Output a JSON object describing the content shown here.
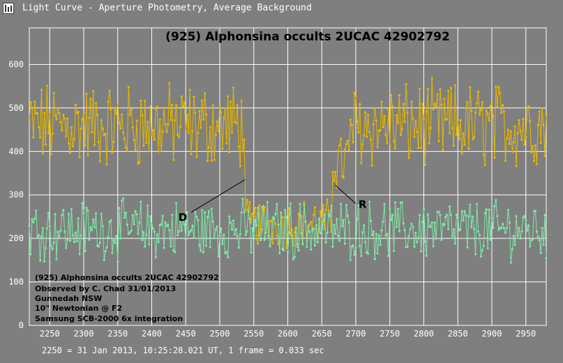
{
  "window": {
    "title": "Light Curve - Aperture Photometry, Average Background",
    "icon": "light-curve-app-icon"
  },
  "colors": {
    "background": "#7f7f7f",
    "grid": "#ffffff",
    "target_series": "#e6b800",
    "comparison_series": "#7fe8a6",
    "text": "#000000"
  },
  "chart_data": {
    "type": "line",
    "title": "(925) Alphonsina occults 2UCAC 42902792",
    "xlim": [
      2220,
      2980
    ],
    "ylim": [
      0,
      620
    ],
    "x_ticks": [
      "2250",
      "2300",
      "2350",
      "2400",
      "2450",
      "2500",
      "2550",
      "2600",
      "2650",
      "2700",
      "2750",
      "2800",
      "2850",
      "2900",
      "2950"
    ],
    "y_ticks": [
      "0",
      "100",
      "200",
      "300",
      "400",
      "500",
      "600"
    ],
    "grid": true,
    "x_note": "2250 = 31 Jan 2013, 10:25:28.021 UT, 1 frame = 0.033 sec",
    "info_lines": [
      "(925) Alphonsina occults 2UCAC 42902792",
      "Observed by C. Chad 31/01/2013",
      "Gunnedah NSW",
      "10\" Newtonian @ F2",
      "Samsung SCB-2000 6x integration"
    ],
    "annotations": [
      {
        "label": "D",
        "x": 2537,
        "y": 335
      },
      {
        "label": "R",
        "x": 2670,
        "y": 322
      }
    ],
    "series": [
      {
        "color": "#e6b800",
        "x_start": 2220,
        "x_end": 2980,
        "segments": [
          {
            "from": 2220,
            "to": 2537,
            "mean": 460,
            "spread": 80
          },
          {
            "from": 2537,
            "to": 2665,
            "mean": 235,
            "spread": 45
          },
          {
            "from": 2665,
            "to": 2690,
            "mean": 380,
            "spread": 60
          },
          {
            "from": 2690,
            "to": 2980,
            "mean": 460,
            "spread": 80
          }
        ]
      },
      {
        "color": "#7fe8a6",
        "x_start": 2220,
        "x_end": 2980,
        "segments": [
          {
            "from": 2220,
            "to": 2980,
            "mean": 220,
            "spread": 55
          }
        ]
      }
    ]
  }
}
